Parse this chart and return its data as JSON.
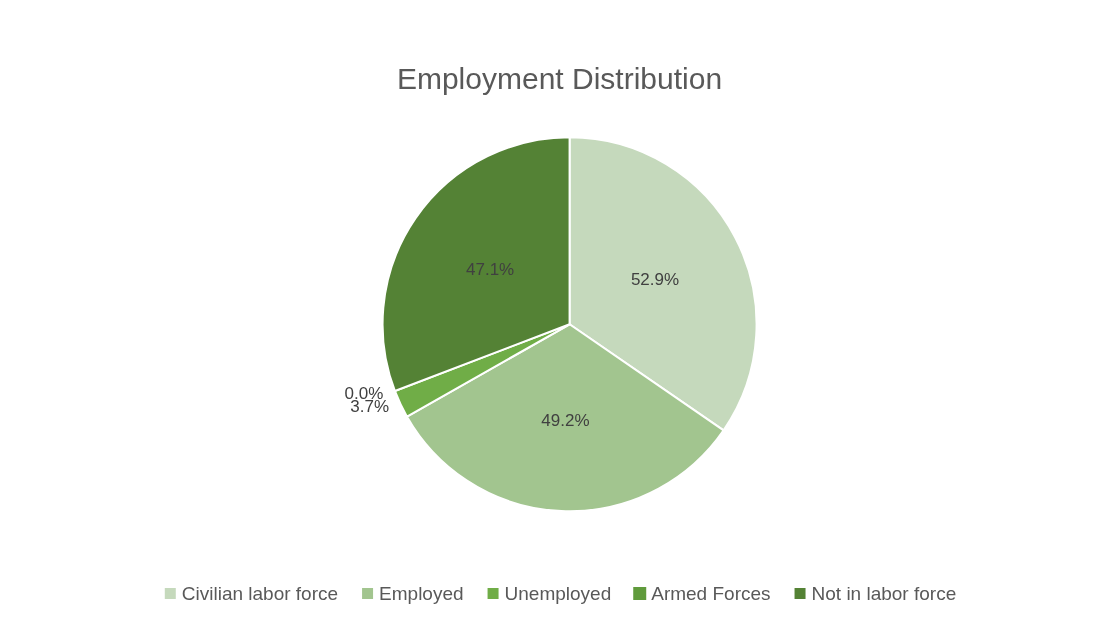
{
  "chart_data": {
    "type": "pie",
    "title": "Employment Distribution",
    "categories": [
      "Civilian labor force",
      "Employed",
      "Unemployed",
      "Armed Forces",
      "Not in labor force"
    ],
    "values": [
      52.9,
      49.2,
      3.7,
      0.0,
      47.1
    ],
    "colors": [
      "#c5d9bc",
      "#a2c58f",
      "#70ad47",
      "#609b3c",
      "#548235"
    ],
    "value_labels": [
      "52.9%",
      "49.2%",
      "3.7%",
      "0.0%",
      "47.1%"
    ],
    "legend": "bottom"
  }
}
